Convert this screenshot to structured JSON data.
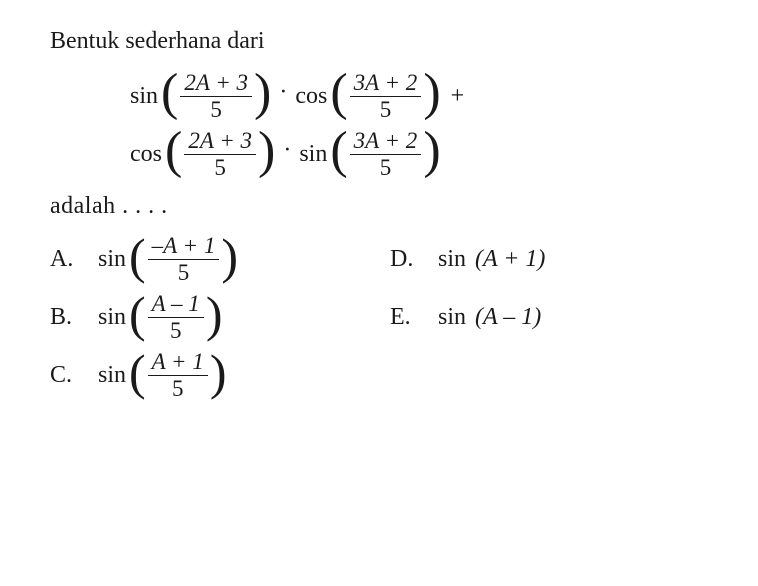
{
  "header": "Bentuk sederhana dari",
  "formula": {
    "line1": {
      "fn1": "sin",
      "frac1_num": "2A + 3",
      "frac1_den": "5",
      "dot": "·",
      "fn2": "cos",
      "frac2_num": "3A + 2",
      "frac2_den": "5",
      "trail": "+"
    },
    "line2": {
      "fn1": "cos",
      "frac1_num": "2A + 3",
      "frac1_den": "5",
      "dot": "·",
      "fn2": "sin",
      "frac2_num": "3A + 2",
      "frac2_den": "5"
    }
  },
  "adalah": "adalah . . . .",
  "options": {
    "A": {
      "letter": "A.",
      "fn": "sin",
      "frac_num": "–A + 1",
      "frac_den": "5",
      "has_frac": true
    },
    "B": {
      "letter": "B.",
      "fn": "sin",
      "frac_num": "A – 1",
      "frac_den": "5",
      "has_frac": true
    },
    "C": {
      "letter": "C.",
      "fn": "sin",
      "frac_num": "A + 1",
      "frac_den": "5",
      "has_frac": true
    },
    "D": {
      "letter": "D.",
      "fn": "sin",
      "arg": "(A + 1)",
      "has_frac": false
    },
    "E": {
      "letter": "E.",
      "fn": "sin",
      "arg": "(A – 1)",
      "has_frac": false
    }
  },
  "style": {
    "text_color": "#1a1a1a",
    "background": "#ffffff",
    "font_family": "Times New Roman, serif",
    "base_fontsize": 24,
    "frac_fontsize": 23,
    "paren_fontsize": 52
  }
}
